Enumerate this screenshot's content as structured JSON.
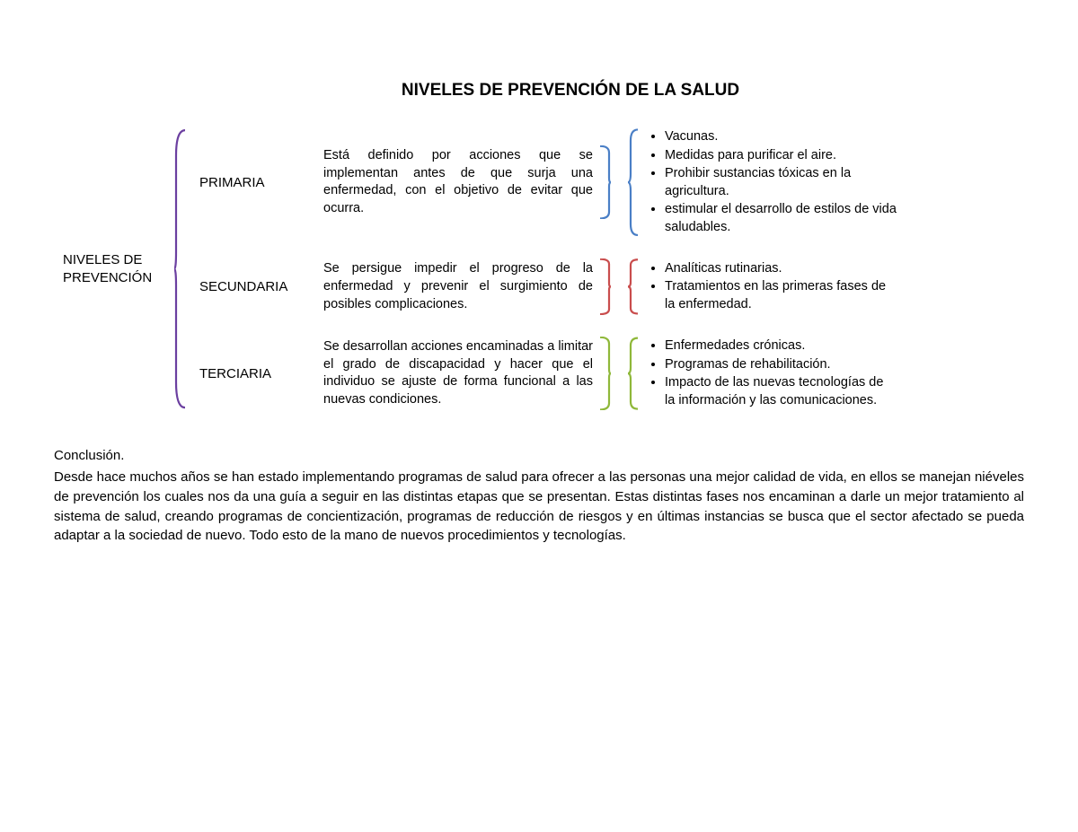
{
  "title": "NIVELES DE PREVENCIÓN DE LA SALUD",
  "root_label": "NIVELES DE\nPREVENCIÓN",
  "colors": {
    "root_bracket": "#6b3fa0",
    "text": "#000000",
    "background": "#ffffff"
  },
  "levels": [
    {
      "label": "PRIMARIA",
      "bracket_color": "#4a7fc6",
      "desc": "Está definido por acciones que se implementan antes de que surja una enfermedad, con el objetivo de evitar que ocurra.",
      "examples": [
        "Vacunas.",
        "Medidas para purificar el aire.",
        "Prohibir sustancias tóxicas en la agricultura.",
        "estimular el desarrollo de estilos de vida saludables."
      ]
    },
    {
      "label": "SECUNDARIA",
      "bracket_color": "#c94d4d",
      "desc": "Se persigue impedir el progreso de la enfermedad y prevenir el surgimiento de posibles complicaciones.",
      "examples": [
        "Analíticas rutinarias.",
        "Tratamientos en las primeras fases de la enfermedad."
      ]
    },
    {
      "label": "TERCIARIA",
      "bracket_color": "#8fb83a",
      "desc": "Se desarrollan acciones encaminadas a limitar el grado de discapacidad y hacer que el individuo se ajuste de forma funcional a las nuevas condiciones.",
      "examples": [
        "Enfermedades crónicas.",
        "Programas de rehabilitación.",
        "Impacto de las nuevas tecnologías de la información y las comunicaciones."
      ]
    }
  ],
  "conclusion_title": "Conclusión.",
  "conclusion_text": "Desde hace muchos años se han estado implementando programas de salud para ofrecer a las personas una mejor calidad de vida, en ellos se manejan niéveles de prevención los cuales nos da una guía a seguir en las distintas etapas que se presentan. Estas distintas fases nos encaminan a darle un mejor tratamiento al sistema de salud, creando programas de concientización, programas de reducción de riesgos y en últimas instancias se busca que el sector afectado se pueda adaptar a la sociedad de nuevo. Todo esto de la mano de nuevos procedimientos y  tecnologías.",
  "bracket_stroke_width": 2.2
}
